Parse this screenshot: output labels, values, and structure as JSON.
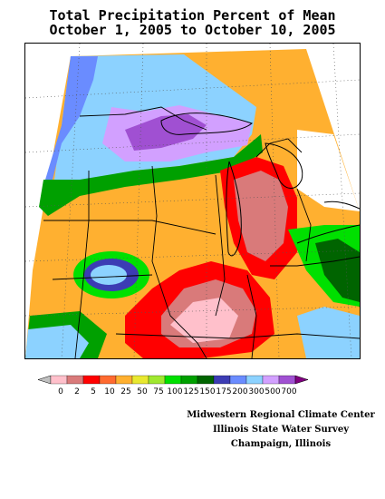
{
  "title": {
    "line1": "Total Precipitation Percent of Mean",
    "line2": "October 1, 2005 to October 10, 2005"
  },
  "legend": {
    "labels": [
      "0",
      "2",
      "5",
      "10",
      "25",
      "50",
      "75",
      "100",
      "125",
      "150",
      "175",
      "200",
      "300",
      "500",
      "700"
    ],
    "colors": [
      "#c0c0c0",
      "#ffc0cb",
      "#d97a7a",
      "#ff0000",
      "#ff6a30",
      "#ffb030",
      "#e8e830",
      "#a0e830",
      "#00e000",
      "#00a000",
      "#006400",
      "#3c3cb4",
      "#6a8cff",
      "#8cd2ff",
      "#d2a0ff",
      "#a050d2",
      "#800080"
    ]
  },
  "credits": {
    "line1": "Midwestern Regional Climate Center",
    "line2": "Illinois State Water Survey",
    "line3": "Champaign, Illinois"
  },
  "map": {
    "region": "Midwestern United States"
  }
}
